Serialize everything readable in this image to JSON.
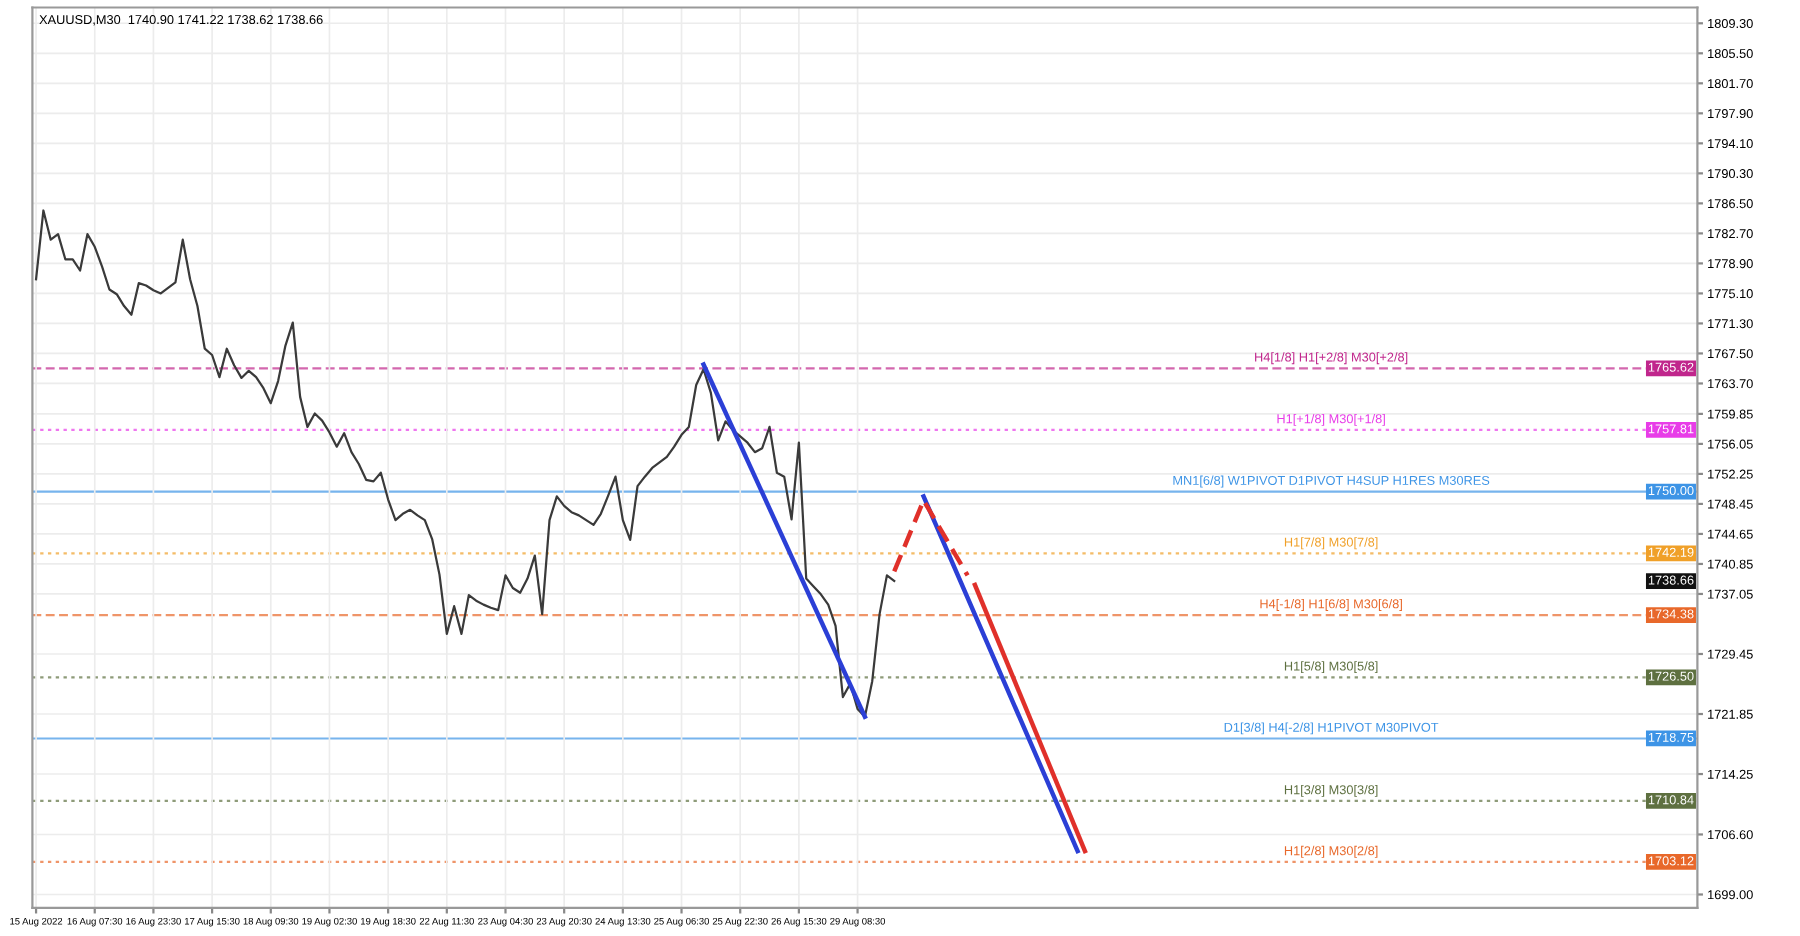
{
  "chart_data": {
    "type": "line",
    "title": "XAUUSD,M30  1740.90 1741.22 1738.62 1738.66",
    "categories": [
      "15 Aug 2022",
      null,
      null,
      null,
      null,
      null,
      null,
      null,
      "16 Aug 07:30",
      null,
      null,
      null,
      null,
      null,
      null,
      null,
      "16 Aug 23:30",
      null,
      null,
      null,
      null,
      null,
      null,
      null,
      "17 Aug 15:30",
      null,
      null,
      null,
      null,
      null,
      null,
      null,
      "18 Aug 09:30",
      null,
      null,
      null,
      null,
      null,
      null,
      null,
      "19 Aug 02:30",
      null,
      null,
      null,
      null,
      null,
      null,
      null,
      "19 Aug 18:30",
      null,
      null,
      null,
      null,
      null,
      null,
      null,
      "22 Aug 11:30",
      null,
      null,
      null,
      null,
      null,
      null,
      null,
      "23 Aug 04:30",
      null,
      null,
      null,
      null,
      null,
      null,
      null,
      "23 Aug 20:30",
      null,
      null,
      null,
      null,
      null,
      null,
      null,
      "24 Aug 13:30",
      null,
      null,
      null,
      null,
      null,
      null,
      null,
      "25 Aug 06:30",
      null,
      null,
      null,
      null,
      null,
      null,
      null,
      "25 Aug 22:30",
      null,
      null,
      null,
      null,
      null,
      null,
      null,
      "26 Aug 15:30",
      null,
      null,
      null,
      null,
      null,
      null,
      null,
      "29 Aug 08:30",
      null,
      null,
      null,
      null,
      null,
      null,
      null,
      null,
      null,
      null,
      null,
      null,
      null,
      null,
      null,
      null,
      null,
      null,
      null,
      null,
      null,
      null,
      null,
      null,
      null,
      null,
      null,
      null,
      null,
      null,
      null,
      null,
      null,
      null,
      null,
      null,
      null,
      null,
      null,
      null,
      null,
      null,
      null,
      null,
      null,
      null,
      null,
      null,
      null,
      null,
      null,
      null,
      null,
      null,
      null,
      null,
      null,
      null,
      null,
      null,
      null,
      null,
      null,
      null,
      null,
      null,
      null,
      null,
      null,
      null,
      null,
      null,
      null,
      null,
      null,
      null,
      null,
      null,
      null,
      null,
      null,
      null,
      null,
      null,
      null,
      null,
      null,
      null,
      null,
      null,
      null,
      null,
      null,
      null,
      null,
      null,
      null,
      null,
      null,
      null,
      null,
      null,
      null,
      null,
      null,
      null,
      null,
      null,
      null,
      null,
      null,
      null,
      null,
      null
    ],
    "series": [
      {
        "color": "#3a3a3a",
        "values": [
          1776.9,
          1785.6,
          1781.9,
          1782.6,
          1779.4,
          1779.4,
          1778.0,
          1782.6,
          1781.0,
          1778.5,
          1775.6,
          1775.0,
          1773.5,
          1772.4,
          1776.4,
          1776.1,
          1775.5,
          1775.1,
          1775.8,
          1776.5,
          1781.9,
          1776.9,
          1773.5,
          1768.1,
          1767.3,
          1764.5,
          1768.1,
          1766.0,
          1764.4,
          1765.3,
          1764.5,
          1763.1,
          1761.2,
          1764.0,
          1768.5,
          1771.4,
          1762.0,
          1758.2,
          1759.9,
          1759.0,
          1757.5,
          1755.7,
          1757.4,
          1755.0,
          1753.5,
          1751.5,
          1751.3,
          1752.4,
          1749.0,
          1746.4,
          1747.2,
          1747.7,
          1747.0,
          1746.4,
          1744.0,
          1739.5,
          1732.0,
          1735.5,
          1732.0,
          1736.9,
          1736.2,
          1735.7,
          1735.3,
          1735.0,
          1739.4,
          1737.8,
          1737.2,
          1739.0,
          1741.9,
          1734.5,
          1746.4,
          1749.4,
          1748.2,
          1747.4,
          1747.0,
          1746.4,
          1745.8,
          1747.2,
          1749.5,
          1751.9,
          1746.4,
          1743.9,
          1750.7,
          1751.9,
          1753.0,
          1753.7,
          1754.4,
          1755.7,
          1757.2,
          1758.2,
          1763.5,
          1765.5,
          1762.5,
          1756.5,
          1758.9,
          1757.8,
          1757.0,
          1756.2,
          1755.0,
          1755.5,
          1758.2,
          1752.4,
          1751.9,
          1746.5,
          1756.2,
          1739.0,
          1738.0,
          1737.0,
          1735.7,
          1733.0,
          1724.0,
          1725.7,
          1722.5,
          1721.5,
          1726.0,
          1734.5,
          1739.4,
          1738.7,
          null,
          null,
          null,
          null,
          null,
          null,
          null,
          null,
          null,
          null,
          null,
          null,
          null,
          null,
          null,
          null,
          null,
          null,
          null,
          null,
          null,
          null,
          null,
          null,
          null,
          null,
          null,
          null,
          null,
          null,
          null,
          null,
          null,
          null,
          null,
          null,
          null,
          null,
          null,
          null,
          null,
          null,
          null,
          null,
          null,
          null,
          null,
          null,
          null,
          null,
          null,
          null,
          null,
          null,
          null,
          null,
          null,
          null,
          null,
          null,
          null,
          null,
          null,
          null,
          null,
          null,
          null,
          null,
          null,
          null,
          null,
          null,
          null,
          null,
          null,
          null,
          null,
          null,
          null,
          null,
          null,
          null,
          null,
          null,
          null,
          null,
          null,
          null,
          null,
          null,
          null,
          null,
          null,
          null,
          null,
          null,
          null,
          null,
          null,
          null,
          null,
          null,
          null,
          null,
          null,
          null,
          null,
          null,
          null
        ]
      },
      {
        "color": "#2b3fd6",
        "values": [
          null,
          null,
          null,
          null,
          null,
          null,
          null,
          null,
          null,
          null,
          null,
          null,
          null,
          null,
          null,
          null,
          null,
          null,
          null,
          null,
          null,
          null,
          null,
          null,
          null,
          null,
          null,
          null,
          null,
          null,
          null,
          null,
          null,
          null,
          null,
          null,
          null,
          null,
          null,
          null,
          null,
          null,
          null,
          null,
          null,
          null,
          null,
          null,
          null,
          null,
          null,
          null,
          null,
          null,
          null,
          null,
          null,
          null,
          null,
          null,
          null,
          null,
          null,
          null,
          null,
          null,
          null,
          null,
          null,
          null,
          null,
          null,
          null,
          null,
          null,
          null,
          null,
          null,
          null,
          null,
          null,
          null,
          null,
          null,
          null,
          null,
          null,
          null,
          null,
          null,
          null,
          1766.1,
          null,
          null,
          null,
          null,
          null,
          null,
          null,
          null,
          null,
          null,
          null,
          null,
          null,
          null,
          null,
          null,
          null,
          null,
          null,
          null,
          null,
          1721.5,
          null,
          null,
          null,
          null,
          null,
          null,
          null,
          null,
          null,
          null,
          null,
          null,
          null,
          null,
          null,
          null,
          null,
          null,
          null,
          null,
          null,
          null,
          null,
          null,
          null,
          null,
          null,
          null,
          null,
          null,
          null,
          null,
          null,
          null,
          null,
          null,
          null,
          null,
          null,
          null,
          null,
          null,
          null,
          null,
          null,
          null,
          null,
          null,
          null,
          null,
          null,
          null,
          null,
          null,
          null,
          null,
          null,
          null,
          null,
          null,
          null,
          null,
          null,
          null,
          null,
          null,
          null,
          null,
          null,
          null,
          null,
          null,
          null,
          null,
          null,
          null,
          null,
          null,
          null,
          null,
          null,
          null,
          null,
          null,
          null,
          null,
          null,
          null,
          null,
          null,
          null,
          null,
          null,
          null,
          null,
          null,
          null,
          null,
          null,
          null,
          null,
          null,
          null,
          null,
          null,
          null,
          null,
          null,
          null,
          null,
          null,
          null,
          null
        ]
      },
      {
        "color": "#2b3fd6",
        "values": [
          null,
          null,
          null,
          null,
          null,
          null,
          null,
          null,
          null,
          null,
          null,
          null,
          null,
          null,
          null,
          null,
          null,
          null,
          null,
          null,
          null,
          null,
          null,
          null,
          null,
          null,
          null,
          null,
          null,
          null,
          null,
          null,
          null,
          null,
          null,
          null,
          null,
          null,
          null,
          null,
          null,
          null,
          null,
          null,
          null,
          null,
          null,
          null,
          null,
          null,
          null,
          null,
          null,
          null,
          null,
          null,
          null,
          null,
          null,
          null,
          null,
          null,
          null,
          null,
          null,
          null,
          null,
          null,
          null,
          null,
          null,
          null,
          null,
          null,
          null,
          null,
          null,
          null,
          null,
          null,
          null,
          null,
          null,
          null,
          null,
          null,
          null,
          null,
          null,
          null,
          null,
          null,
          null,
          null,
          null,
          null,
          null,
          null,
          null,
          null,
          null,
          null,
          null,
          null,
          null,
          null,
          null,
          null,
          null,
          null,
          null,
          null,
          null,
          null,
          null,
          null,
          null,
          null,
          null,
          null,
          null,
          1749.4,
          null,
          null,
          null,
          null,
          null,
          null,
          null,
          null,
          null,
          null,
          null,
          null,
          null,
          null,
          null,
          null,
          null,
          null,
          null,
          null,
          1704.5,
          null,
          null,
          null,
          null,
          null,
          null,
          null,
          null,
          null,
          null,
          null,
          null,
          null,
          null,
          null,
          null,
          null,
          null,
          null,
          null,
          null,
          null,
          null,
          null,
          null,
          null,
          null,
          null,
          null,
          null,
          null,
          null,
          null,
          null,
          null,
          null,
          null,
          null,
          null,
          null,
          null,
          null,
          null,
          null,
          null,
          null,
          null,
          null,
          null,
          null,
          null,
          null,
          null,
          null,
          null,
          null,
          null,
          null,
          null,
          null,
          null,
          null,
          null,
          null,
          null,
          null,
          null,
          null,
          null,
          null,
          null,
          null,
          null,
          null,
          null,
          null,
          null,
          null,
          null,
          null,
          null,
          null,
          null,
          null
        ]
      },
      {
        "color": "#e0302a",
        "line_style": "dashed",
        "values": [
          null,
          null,
          null,
          null,
          null,
          null,
          null,
          null,
          null,
          null,
          null,
          null,
          null,
          null,
          null,
          null,
          null,
          null,
          null,
          null,
          null,
          null,
          null,
          null,
          null,
          null,
          null,
          null,
          null,
          null,
          null,
          null,
          null,
          null,
          null,
          null,
          null,
          null,
          null,
          null,
          null,
          null,
          null,
          null,
          null,
          null,
          null,
          null,
          null,
          null,
          null,
          null,
          null,
          null,
          null,
          null,
          null,
          null,
          null,
          null,
          null,
          null,
          null,
          null,
          null,
          null,
          null,
          null,
          null,
          null,
          null,
          null,
          null,
          null,
          null,
          null,
          null,
          null,
          null,
          null,
          null,
          null,
          null,
          null,
          null,
          null,
          null,
          null,
          null,
          null,
          null,
          null,
          null,
          null,
          null,
          null,
          null,
          null,
          null,
          null,
          null,
          null,
          null,
          null,
          null,
          null,
          null,
          null,
          null,
          null,
          null,
          null,
          null,
          null,
          null,
          null,
          null,
          1739.9,
          null,
          null,
          null,
          1748.9,
          null,
          null,
          null,
          null,
          null,
          1739.4,
          null,
          null,
          null,
          null,
          null,
          null,
          null,
          null,
          null,
          null,
          null,
          null,
          null,
          null,
          null,
          null,
          null,
          null,
          null,
          null,
          null,
          null,
          null,
          null,
          null,
          null,
          null,
          null,
          null,
          null,
          null,
          null,
          null,
          null,
          null,
          null,
          null,
          null,
          null,
          null,
          null,
          null,
          null,
          null,
          null,
          null,
          null,
          null,
          null,
          null,
          null,
          null,
          null,
          null,
          null,
          null,
          null,
          null,
          null,
          null,
          null,
          null,
          null,
          null,
          null,
          null,
          null,
          null,
          null,
          null,
          null,
          null,
          null,
          null,
          null,
          null,
          null,
          null,
          null,
          null,
          null,
          null,
          null,
          null,
          null,
          null,
          null,
          null,
          null,
          null,
          null,
          null,
          null,
          null,
          null,
          null,
          null,
          null,
          null
        ]
      },
      {
        "color": "#e0302a",
        "values": [
          null,
          null,
          null,
          null,
          null,
          null,
          null,
          null,
          null,
          null,
          null,
          null,
          null,
          null,
          null,
          null,
          null,
          null,
          null,
          null,
          null,
          null,
          null,
          null,
          null,
          null,
          null,
          null,
          null,
          null,
          null,
          null,
          null,
          null,
          null,
          null,
          null,
          null,
          null,
          null,
          null,
          null,
          null,
          null,
          null,
          null,
          null,
          null,
          null,
          null,
          null,
          null,
          null,
          null,
          null,
          null,
          null,
          null,
          null,
          null,
          null,
          null,
          null,
          null,
          null,
          null,
          null,
          null,
          null,
          null,
          null,
          null,
          null,
          null,
          null,
          null,
          null,
          null,
          null,
          null,
          null,
          null,
          null,
          null,
          null,
          null,
          null,
          null,
          null,
          null,
          null,
          null,
          null,
          null,
          null,
          null,
          null,
          null,
          null,
          null,
          null,
          null,
          null,
          null,
          null,
          null,
          null,
          null,
          null,
          null,
          null,
          null,
          null,
          null,
          null,
          null,
          null,
          null,
          null,
          null,
          null,
          null,
          null,
          null,
          null,
          null,
          null,
          null,
          1738.2,
          null,
          null,
          null,
          null,
          null,
          null,
          null,
          null,
          null,
          null,
          null,
          null,
          null,
          null,
          1704.5,
          null,
          null,
          null,
          null,
          null,
          null,
          null,
          null,
          null,
          null,
          null,
          null,
          null,
          null,
          null,
          null,
          null,
          null,
          null,
          null,
          null,
          null,
          null,
          null,
          null,
          null,
          null,
          null,
          null,
          null,
          null,
          null,
          null,
          null,
          null,
          null,
          null,
          null,
          null,
          null,
          null,
          null,
          null,
          null,
          null,
          null,
          null,
          null,
          null,
          null,
          null,
          null,
          null,
          null,
          null,
          null,
          null,
          null,
          null,
          null,
          null,
          null,
          null,
          null,
          null,
          null,
          null,
          null,
          null,
          null,
          null,
          null,
          null,
          null,
          null,
          null,
          null,
          null,
          null,
          null,
          null,
          null,
          null
        ]
      }
    ],
    "ylim": [
      1697.3,
      1811.3
    ],
    "yticks": [
      {
        "value": 1809.3,
        "label": "1809.30"
      },
      {
        "value": 1805.5,
        "label": "1805.50"
      },
      {
        "value": 1801.7,
        "label": "1801.70"
      },
      {
        "value": 1797.9,
        "label": "1797.90"
      },
      {
        "value": 1794.1,
        "label": "1794.10"
      },
      {
        "value": 1790.3,
        "label": "1790.30"
      },
      {
        "value": 1786.5,
        "label": "1786.50"
      },
      {
        "value": 1782.7,
        "label": "1782.70"
      },
      {
        "value": 1778.9,
        "label": "1778.90"
      },
      {
        "value": 1775.1,
        "label": "1775.10"
      },
      {
        "value": 1771.3,
        "label": "1771.30"
      },
      {
        "value": 1767.5,
        "label": "1767.50"
      },
      {
        "value": 1763.7,
        "label": "1763.70"
      },
      {
        "value": 1759.85,
        "label": "1759.85"
      },
      {
        "value": 1756.05,
        "label": "1756.05"
      },
      {
        "value": 1752.25,
        "label": "1752.25"
      },
      {
        "value": 1748.45,
        "label": "1748.45"
      },
      {
        "value": 1744.65,
        "label": "1744.65"
      },
      {
        "value": 1740.85,
        "label": "1740.85"
      },
      {
        "value": 1737.05,
        "label": "1737.05"
      },
      {
        "value": 1729.45,
        "label": "1729.45"
      },
      {
        "value": 1721.85,
        "label": "1721.85"
      },
      {
        "value": 1714.25,
        "label": "1714.25"
      },
      {
        "value": 1706.6,
        "label": "1706.60"
      },
      {
        "value": 1699.0,
        "label": "1699.00"
      }
    ],
    "grid": true,
    "ref_lines": [
      {
        "axis": "y",
        "value": 1765.62,
        "label": "H4[1/8] H1[+2/8] M30[+2/8]",
        "color": "#c0268c",
        "line_style": "dashed"
      },
      {
        "axis": "y",
        "value": 1757.81,
        "label": "H1[+1/8] M30[+1/8]",
        "color": "#e83ce8",
        "line_style": "dotted"
      },
      {
        "axis": "y",
        "value": 1750.0,
        "label": "MN1[6/8] W1PIVOT D1PIVOT H4SUP H1RES M30RES",
        "color": "#3d94e6",
        "line_style": "solid"
      },
      {
        "axis": "y",
        "value": 1742.19,
        "label": "H1[7/8] M30[7/8]",
        "color": "#f0a028",
        "line_style": "dotted"
      },
      {
        "axis": "y",
        "value": 1734.38,
        "label": "H4[-1/8] H1[6/8] M30[6/8]",
        "color": "#e8682a",
        "line_style": "dashed"
      },
      {
        "axis": "y",
        "value": 1726.5,
        "label": "H1[5/8] M30[5/8]",
        "color": "#5e7040",
        "line_style": "dotted"
      },
      {
        "axis": "y",
        "value": 1718.75,
        "label": "D1[3/8] H4[-2/8] H1PIVOT M30PIVOT",
        "color": "#3d94e6",
        "line_style": "solid"
      },
      {
        "axis": "y",
        "value": 1710.84,
        "label": "H1[3/8] M30[3/8]",
        "color": "#5e7040",
        "line_style": "dotted"
      },
      {
        "axis": "y",
        "value": 1703.12,
        "label": "H1[2/8] M30[2/8]",
        "color": "#e8682a",
        "line_style": "dotted"
      }
    ],
    "annotations": [
      {
        "text": "1765.62",
        "y": 1765.62
      },
      {
        "text": "1757.81",
        "y": 1757.81
      },
      {
        "text": "1750.00",
        "y": 1750.0
      },
      {
        "text": "1742.19",
        "y": 1742.19
      },
      {
        "text": "1738.66",
        "y": 1738.66
      },
      {
        "text": "1734.38",
        "y": 1734.38
      },
      {
        "text": "1726.50",
        "y": 1726.5
      },
      {
        "text": "1718.75",
        "y": 1718.75
      },
      {
        "text": "1710.84",
        "y": 1710.84
      },
      {
        "text": "1703.12",
        "y": 1703.12
      }
    ]
  }
}
